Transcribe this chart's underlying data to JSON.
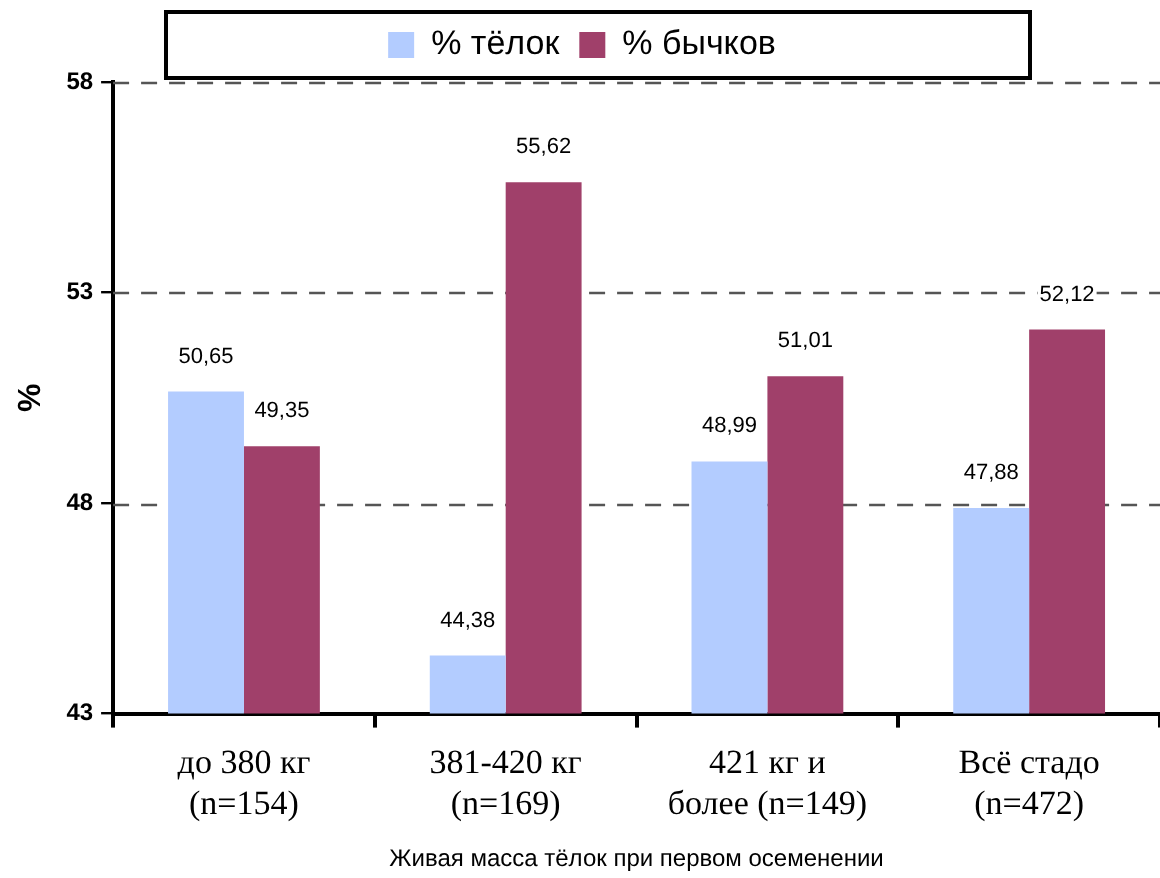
{
  "chart_data": {
    "type": "bar",
    "xlabel": "Живая масса тёлок при первом осеменении",
    "ylabel": "%",
    "categories": [
      "до 380 кг\n(n=154)",
      "381-420 кг\n(n=169)",
      "421 кг и\nболее (n=149)",
      "Всё стадо\n(n=472)"
    ],
    "series": [
      {
        "name": "% тёлок",
        "color": "#b3ccff",
        "values": [
          50.65,
          44.38,
          48.99,
          47.88
        ],
        "value_labels": [
          "50,65",
          "44,38",
          "48,99",
          "47,88"
        ]
      },
      {
        "name": "% бычков",
        "color": "#a0406a",
        "values": [
          49.35,
          55.62,
          51.01,
          52.12
        ],
        "value_labels": [
          "49,35",
          "55,62",
          "51,01",
          "52,12"
        ]
      }
    ],
    "ylim": [
      43,
      58
    ],
    "yticks": [
      43,
      48,
      53,
      58
    ],
    "grid": "y",
    "legend": "top"
  }
}
